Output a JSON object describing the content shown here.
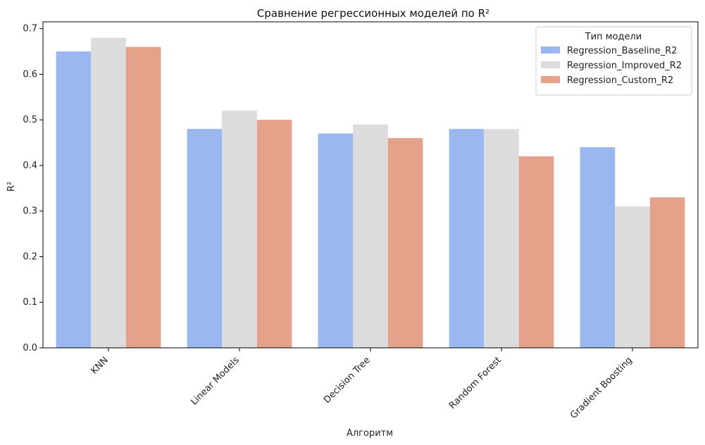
{
  "chart_data": {
    "type": "bar",
    "title": "Сравнение регрессионных моделей по R²",
    "xlabel": "Алгоритм",
    "ylabel": "R²",
    "categories": [
      "KNN",
      "Linear Models",
      "Decision Tree",
      "Random Forest",
      "Gradient Boosting"
    ],
    "series": [
      {
        "name": "Regression_Baseline_R2",
        "color": "#9bb7f0",
        "values": [
          0.65,
          0.48,
          0.47,
          0.48,
          0.44
        ]
      },
      {
        "name": "Regression_Improved_R2",
        "color": "#dcdcdc",
        "values": [
          0.68,
          0.52,
          0.49,
          0.48,
          0.31
        ]
      },
      {
        "name": "Regression_Custom_R2",
        "color": "#e5a28a",
        "values": [
          0.66,
          0.5,
          0.46,
          0.42,
          0.33
        ]
      }
    ],
    "ylim": [
      0,
      0.715
    ],
    "yticks": [
      "0.0",
      "0.1",
      "0.2",
      "0.3",
      "0.4",
      "0.5",
      "0.6",
      "0.7"
    ],
    "legend": {
      "title": "Тип модели",
      "placement": "top-right"
    },
    "grid": false
  }
}
